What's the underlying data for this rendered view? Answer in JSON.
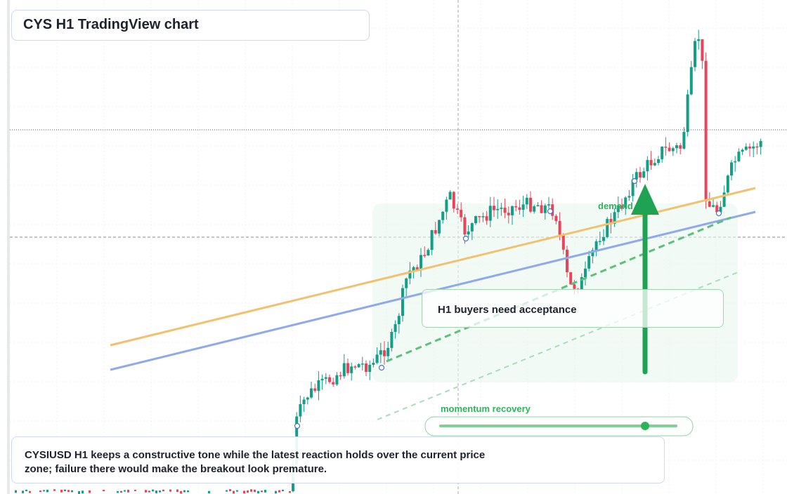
{
  "header": {
    "title": "CYS H1 TradingView chart"
  },
  "annotations": {
    "zone_label": "demand ride",
    "callout": "H1 buyers need acceptance",
    "slider_label": "momentum recovery"
  },
  "footer": {
    "note": "CYSIUSD H1 keeps a constructive tone while the latest reaction holds over the current price zone; failure there would make the breakout look premature."
  }
}
